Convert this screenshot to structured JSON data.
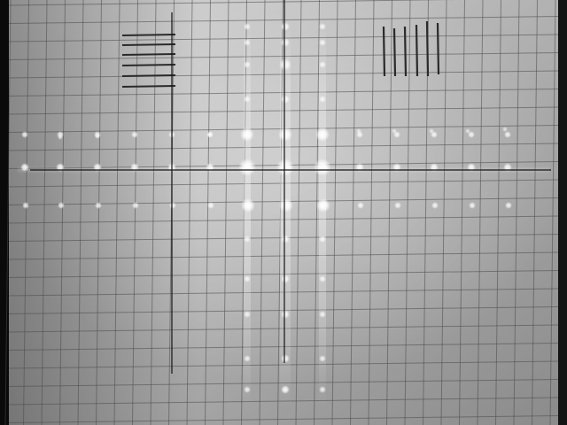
{
  "scene": {
    "subject": "diffraction-pattern-on-grid-screen",
    "colors": {
      "screen_light": "#c9c9c9",
      "screen_mid": "#a3a3a3",
      "screen_dark": "#6f6f6f",
      "grid_line": "#4a4a4a",
      "crosshair": "#141414",
      "calibration_mark": "#2a2a2a",
      "spot": "#ffffff",
      "border_dark": "#050505"
    }
  }
}
